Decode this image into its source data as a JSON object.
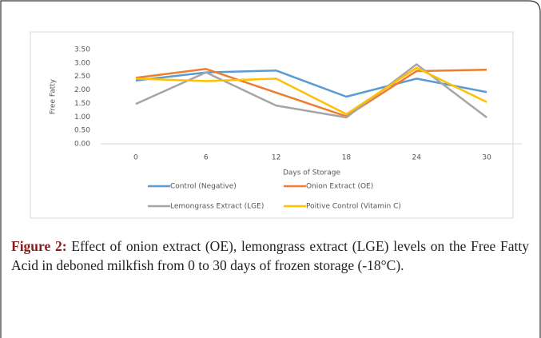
{
  "chart_data": {
    "type": "line",
    "ylabel": "Free Fatty",
    "xlabel": "Days of Storage",
    "categories": [
      "0",
      "6",
      "12",
      "18",
      "24",
      "30"
    ],
    "series": [
      {
        "name": "Control (Negative)",
        "color": "#5b9bd5",
        "values": [
          2.35,
          2.65,
          2.72,
          1.75,
          2.42,
          1.92
        ]
      },
      {
        "name": "Onion Extract (OE)",
        "color": "#ed7d31",
        "values": [
          2.45,
          2.78,
          1.9,
          1.02,
          2.7,
          2.75
        ]
      },
      {
        "name": "Lemongrass Extract (LGE)",
        "color": "#a5a5a5",
        "values": [
          1.48,
          2.65,
          1.42,
          0.98,
          2.95,
          0.98
        ]
      },
      {
        "name": "Poitive Control (Vitamin C)",
        "color": "#ffc000",
        "values": [
          2.42,
          2.33,
          2.42,
          1.1,
          2.82,
          1.55
        ]
      }
    ],
    "ylim": [
      0,
      3.5
    ],
    "yticks": [
      {
        "value": 0,
        "label": "0.00"
      },
      {
        "value": 0.5,
        "label": "0.50"
      },
      {
        "value": 1,
        "label": "1.00"
      },
      {
        "value": 1.5,
        "label": "1.50"
      },
      {
        "value": 2,
        "label": "2.00"
      },
      {
        "value": 2.5,
        "label": "2.50"
      },
      {
        "value": 3,
        "label": "3.00"
      },
      {
        "value": 3.5,
        "label": "3.50"
      }
    ],
    "grid": false
  },
  "caption": {
    "label": "Figure 2:",
    "text": "Effect of onion extract (OE), lemongrass extract (LGE) levels on the Free Fatty Acid in deboned milkfish from 0 to 30 days of frozen storage (-18°C)."
  }
}
